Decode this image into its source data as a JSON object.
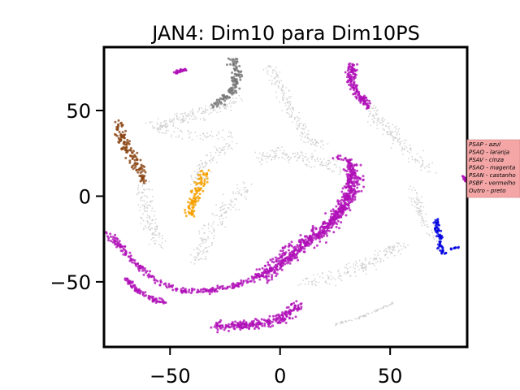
{
  "chart_data": {
    "type": "scatter",
    "title": "JAN4: Dim10 para Dim10PS",
    "xlabel": "",
    "ylabel": "",
    "xlim": [
      -80,
      85
    ],
    "ylim": [
      -88,
      87
    ],
    "x_ticks": [
      -50,
      0,
      50
    ],
    "x_tick_labels": [
      "−50",
      "0",
      "50"
    ],
    "y_ticks": [
      -50,
      0,
      50
    ],
    "y_tick_labels": [
      "−50",
      "0",
      "50"
    ],
    "grid": false,
    "legend": {
      "placement": "right, outside axes",
      "background": "#f4a6a6",
      "entries": [
        "PSAP - azul",
        "PSAQ - laranja",
        "PSAV - cinza",
        "PSAO - magenta",
        "PSAN - castanho",
        "PSBF - vermelho",
        "Outro - preto"
      ]
    },
    "series": [
      {
        "color": "#c8c8c8",
        "role": "background",
        "clusters": [
          {
            "path": [
              [
                -57,
                41
              ],
              [
                -48,
                44
              ],
              [
                -38,
                48
              ],
              [
                -28,
                52
              ],
              [
                -20,
                56
              ]
            ],
            "spread": 3.5,
            "n": 180
          },
          {
            "path": [
              [
                -58,
                41
              ],
              [
                -52,
                38
              ],
              [
                -45,
                36
              ],
              [
                -38,
                35
              ],
              [
                -30,
                35
              ],
              [
                -20,
                35
              ]
            ],
            "spread": 3,
            "n": 70
          },
          {
            "path": [
              [
                -22,
                30
              ],
              [
                -30,
                25
              ],
              [
                -36,
                16
              ],
              [
                -39,
                6
              ]
            ],
            "spread": 3,
            "n": 100
          },
          {
            "path": [
              [
                -62,
                9
              ],
              [
                -62,
                0
              ],
              [
                -60,
                -10
              ],
              [
                -57,
                -20
              ],
              [
                -55,
                -28
              ]
            ],
            "spread": 3.5,
            "n": 140
          },
          {
            "path": [
              [
                -5,
                75
              ],
              [
                1,
                62
              ],
              [
                5,
                50
              ],
              [
                9,
                40
              ],
              [
                14,
                32
              ],
              [
                20,
                30
              ]
            ],
            "spread": 3,
            "n": 180
          },
          {
            "path": [
              [
                40,
                52
              ],
              [
                45,
                44
              ],
              [
                52,
                36
              ],
              [
                57,
                28
              ],
              [
                62,
                22
              ],
              [
                67,
                16
              ]
            ],
            "spread": 3.5,
            "n": 160
          },
          {
            "path": [
              [
                -38,
                -38
              ],
              [
                -33,
                -22
              ],
              [
                -28,
                -12
              ],
              [
                -22,
                -3
              ],
              [
                -15,
                6
              ]
            ],
            "spread": 4,
            "n": 160
          },
          {
            "path": [
              [
                -10,
                23
              ],
              [
                0,
                25
              ],
              [
                10,
                22
              ],
              [
                22,
                18
              ],
              [
                28,
                16
              ]
            ],
            "spread": 4,
            "n": 150
          },
          {
            "path": [
              [
                60,
                5
              ],
              [
                63,
                -8
              ],
              [
                67,
                -18
              ],
              [
                71,
                -25
              ]
            ],
            "spread": 2.5,
            "n": 80
          },
          {
            "path": [
              [
                12,
                -50
              ],
              [
                28,
                -46
              ],
              [
                42,
                -38
              ],
              [
                55,
                -28
              ]
            ],
            "spread": 4,
            "n": 180
          },
          {
            "path": [
              [
                25,
                -75
              ],
              [
                38,
                -70
              ],
              [
                52,
                -62
              ]
            ],
            "spread": 0.6,
            "n": 70
          }
        ]
      },
      {
        "color": "#b010b8",
        "role": "PSAO",
        "clusters": [
          {
            "path": [
              [
                33,
                77
              ],
              [
                32,
                68
              ],
              [
                35,
                60
              ],
              [
                38,
                56
              ],
              [
                40,
                52
              ]
            ],
            "spread": 2,
            "n": 160
          },
          {
            "path": [
              [
                -48,
                72
              ],
              [
                -43,
                74
              ]
            ],
            "spread": 0.8,
            "n": 35
          },
          {
            "path": [
              [
                -78,
                -22
              ],
              [
                -72,
                -30
              ],
              [
                -65,
                -40
              ],
              [
                -55,
                -50
              ],
              [
                -45,
                -55
              ],
              [
                -32,
                -55
              ],
              [
                -20,
                -52
              ],
              [
                -10,
                -47
              ],
              [
                0,
                -40
              ],
              [
                8,
                -32
              ],
              [
                15,
                -25
              ],
              [
                22,
                -17
              ],
              [
                28,
                -8
              ],
              [
                31,
                2
              ],
              [
                33,
                12
              ],
              [
                32,
                20
              ],
              [
                28,
                23
              ],
              [
                24,
                22
              ]
            ],
            "spread": 1.6,
            "n": 520
          },
          {
            "path": [
              [
                -8,
                -46
              ],
              [
                0,
                -38
              ],
              [
                8,
                -30
              ],
              [
                15,
                -24
              ],
              [
                22,
                -17
              ],
              [
                28,
                -8
              ],
              [
                32,
                2
              ],
              [
                34,
                10
              ],
              [
                33,
                17
              ]
            ],
            "spread": 4,
            "n": 500
          },
          {
            "path": [
              [
                -70,
                -48
              ],
              [
                -65,
                -55
              ],
              [
                -58,
                -60
              ],
              [
                -52,
                -62
              ]
            ],
            "spread": 1.2,
            "n": 80
          },
          {
            "path": [
              [
                -30,
                -76
              ],
              [
                -15,
                -75
              ],
              [
                -3,
                -73
              ],
              [
                5,
                -68
              ],
              [
                8,
                -62
              ]
            ],
            "spread": 2.8,
            "n": 250
          },
          {
            "path": [
              [
                83,
                12
              ],
              [
                86,
                6
              ]
            ],
            "spread": 0.8,
            "n": 25
          }
        ]
      },
      {
        "color": "#777777",
        "role": "PSAV",
        "clusters": [
          {
            "path": [
              [
                -22,
                80
              ],
              [
                -19,
                72
              ],
              [
                -20,
                64
              ],
              [
                -26,
                56
              ],
              [
                -31,
                53
              ]
            ],
            "spread": 2.4,
            "n": 130
          }
        ]
      },
      {
        "color": "#8b4513",
        "role": "PSAN",
        "clusters": [
          {
            "path": [
              [
                -74,
                43
              ],
              [
                -72,
                33
              ],
              [
                -68,
                24
              ],
              [
                -63,
                16
              ],
              [
                -63,
                9
              ]
            ],
            "spread": 2.6,
            "n": 140
          }
        ]
      },
      {
        "color": "#f5a000",
        "role": "PSAQ",
        "clusters": [
          {
            "path": [
              [
                -34,
                15
              ],
              [
                -36,
                8
              ],
              [
                -39,
                -2
              ],
              [
                -41,
                -11
              ]
            ],
            "spread": 2.2,
            "n": 110
          }
        ]
      },
      {
        "color": "#0000e0",
        "role": "PSAP",
        "clusters": [
          {
            "path": [
              [
                71,
                -14
              ],
              [
                72,
                -22
              ],
              [
                73,
                -31
              ],
              [
                75,
                -33
              ]
            ],
            "spread": 1.4,
            "n": 70
          },
          {
            "path": [
              [
                77,
                -31
              ],
              [
                81,
                -30
              ]
            ],
            "spread": 0.5,
            "n": 10
          }
        ]
      }
    ]
  }
}
